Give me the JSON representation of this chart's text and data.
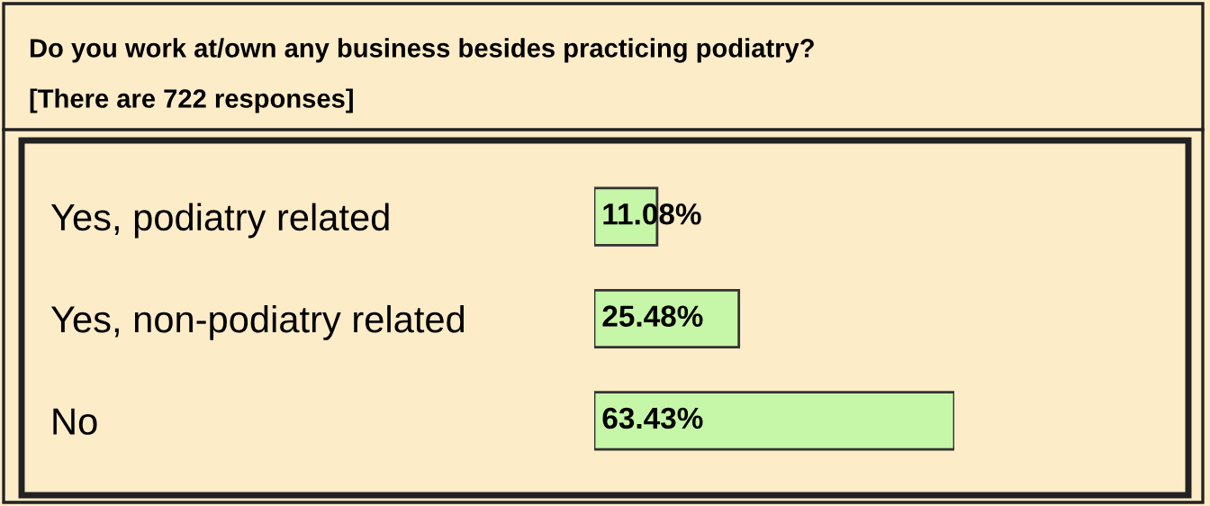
{
  "chart_data": {
    "type": "bar",
    "orientation": "horizontal",
    "title": "Do you work at/own any business besides practicing podiatry?",
    "subtitle": "[There are 722 responses]",
    "categories": [
      "Yes, podiatry related",
      "Yes, non-podiatry related",
      "No"
    ],
    "values": [
      11.08,
      25.48,
      63.43
    ],
    "value_labels": [
      "11.08%",
      "25.48%",
      "63.43%"
    ],
    "color": "#c6f7a8",
    "tick_labels": "y",
    "grid": false,
    "legend": false
  }
}
